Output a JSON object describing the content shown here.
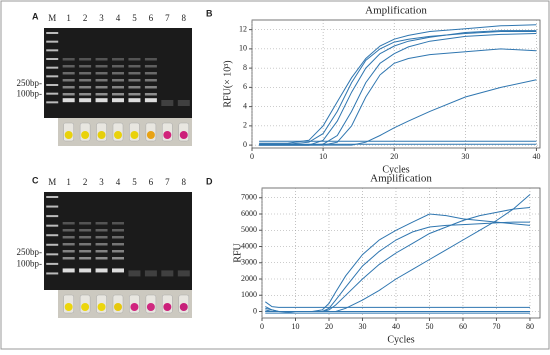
{
  "gels": [
    {
      "letter": "A",
      "lanes": [
        "M",
        "1",
        "2",
        "3",
        "4",
        "5",
        "6",
        "7",
        "8"
      ],
      "markers": [
        "250bp-",
        "100bp-"
      ],
      "tube_colors": [
        "#e9d20b",
        "#e9d20b",
        "#e6cf0a",
        "#e9d20b",
        "#e9d20b",
        "#e8a214",
        "#d1237a",
        "#cc1f7a"
      ]
    },
    {
      "letter": "C",
      "lanes": [
        "M",
        "1",
        "2",
        "3",
        "4",
        "5",
        "6",
        "7",
        "8"
      ],
      "markers": [
        "250bp-",
        "100bp-"
      ],
      "tube_colors": [
        "#ecd60c",
        "#ecd60c",
        "#ecd60c",
        "#e6c80d",
        "#d0237e",
        "#cf2a80",
        "#cc1f7a",
        "#c7207a"
      ]
    }
  ],
  "chart_data": [
    {
      "type": "line",
      "label": "B",
      "title": "Amplification",
      "xlabel": "Cycles",
      "ylabel": "RFU(× 10³)",
      "grid": true,
      "xlim": [
        0,
        40.5
      ],
      "ylim": [
        -0.3,
        13
      ],
      "xticks": [
        0,
        10,
        20,
        30,
        40
      ],
      "yticks": [
        0,
        2,
        4,
        6,
        8,
        10,
        12
      ],
      "x": [
        1,
        5,
        8,
        10,
        12,
        14,
        16,
        18,
        20,
        22,
        25,
        30,
        35,
        40
      ],
      "series": [
        {
          "color": "#2f76b0",
          "values": [
            0.2,
            0.2,
            0.5,
            2,
            4.5,
            7,
            9,
            10.3,
            11,
            11.4,
            11.8,
            12.1,
            12.4,
            12.5
          ]
        },
        {
          "color": "#2f76b0",
          "values": [
            0.1,
            0.1,
            0.3,
            1.2,
            3.5,
            6.5,
            8.8,
            10,
            10.7,
            11,
            11.3,
            11.6,
            11.8,
            11.8
          ]
        },
        {
          "color": "#2f76b0",
          "values": [
            0,
            0,
            0,
            0.5,
            2.5,
            5.5,
            8,
            9.5,
            10.3,
            10.8,
            11.2,
            11.7,
            11.9,
            11.9
          ]
        },
        {
          "color": "#2f76b0",
          "values": [
            0,
            0,
            0,
            0.1,
            1,
            3.5,
            6.5,
            8.5,
            9.5,
            10.2,
            10.8,
            11.3,
            11.5,
            11.6
          ]
        },
        {
          "color": "#2f76b0",
          "values": [
            0,
            0,
            0,
            0,
            0.3,
            2,
            5,
            7.3,
            8.5,
            9,
            9.4,
            9.7,
            10,
            9.8
          ]
        },
        {
          "color": "#2f76b0",
          "values": [
            0,
            0,
            0,
            0,
            0,
            0,
            0.3,
            1,
            1.8,
            2.5,
            3.5,
            5,
            6,
            6.8
          ]
        },
        {
          "color": "#2f76b0",
          "values": [
            0.4,
            0.4,
            0.4,
            0.4,
            0.4,
            0.4,
            0.4,
            0.4,
            0.4,
            0.4,
            0.4,
            0.4,
            0.4,
            0.4
          ]
        },
        {
          "color": "#2f76b0",
          "values": [
            0.1,
            0.1,
            0.1,
            0.1,
            0.1,
            0.1,
            0.1,
            0.1,
            0.1,
            0.1,
            0.1,
            0.1,
            0.1,
            0.1
          ]
        }
      ]
    },
    {
      "type": "line",
      "label": "D",
      "title": "Amplification",
      "xlabel": "Cycles",
      "ylabel": "RFU",
      "grid": true,
      "xlim": [
        0,
        83
      ],
      "ylim": [
        -400,
        7600
      ],
      "xticks": [
        0,
        10,
        20,
        30,
        40,
        50,
        60,
        70,
        80
      ],
      "yticks": [
        0,
        1000,
        2000,
        3000,
        4000,
        5000,
        6000,
        7000
      ],
      "x": [
        1,
        3,
        5,
        8,
        10,
        12,
        15,
        18,
        20,
        22,
        25,
        30,
        35,
        40,
        45,
        50,
        55,
        60,
        65,
        70,
        75,
        80
      ],
      "series": [
        {
          "color": "#2f76b0",
          "values": [
            300,
            100,
            0,
            -50,
            0,
            0,
            0,
            100,
            500,
            1200,
            2200,
            3500,
            4400,
            5000,
            5500,
            6000,
            5900,
            5700,
            5600,
            5500,
            5400,
            5300
          ]
        },
        {
          "color": "#2f76b0",
          "values": [
            200,
            100,
            0,
            0,
            0,
            0,
            0,
            0,
            200,
            700,
            1500,
            2800,
            3700,
            4400,
            4900,
            5200,
            5300,
            5350,
            5400,
            5450,
            5500,
            5500
          ]
        },
        {
          "color": "#2f76b0",
          "values": [
            100,
            0,
            0,
            0,
            0,
            0,
            0,
            0,
            100,
            400,
            1000,
            2000,
            2900,
            3600,
            4200,
            4800,
            5200,
            5600,
            5900,
            6100,
            6300,
            6400
          ]
        },
        {
          "color": "#2f76b0",
          "values": [
            0,
            0,
            0,
            0,
            0,
            0,
            0,
            0,
            0,
            0,
            200,
            700,
            1300,
            2000,
            2600,
            3200,
            3800,
            4400,
            5000,
            5600,
            6300,
            7200
          ]
        },
        {
          "color": "#2f76b0",
          "values": [
            600,
            300,
            250,
            250,
            250,
            250,
            250,
            250,
            250,
            250,
            250,
            250,
            250,
            250,
            250,
            250,
            250,
            250,
            250,
            250,
            250,
            250
          ]
        },
        {
          "color": "#2f76b0",
          "values": [
            0,
            0,
            0,
            0,
            0,
            0,
            0,
            0,
            0,
            0,
            0,
            0,
            0,
            0,
            0,
            0,
            0,
            0,
            0,
            0,
            0,
            0
          ]
        },
        {
          "color": "#2f76b0",
          "values": [
            -100,
            -100,
            -100,
            -100,
            -100,
            -100,
            -100,
            -100,
            -100,
            -100,
            -100,
            -100,
            -100,
            -100,
            -100,
            -100,
            -100,
            -100,
            -100,
            -100,
            -100,
            -100
          ]
        }
      ]
    }
  ]
}
